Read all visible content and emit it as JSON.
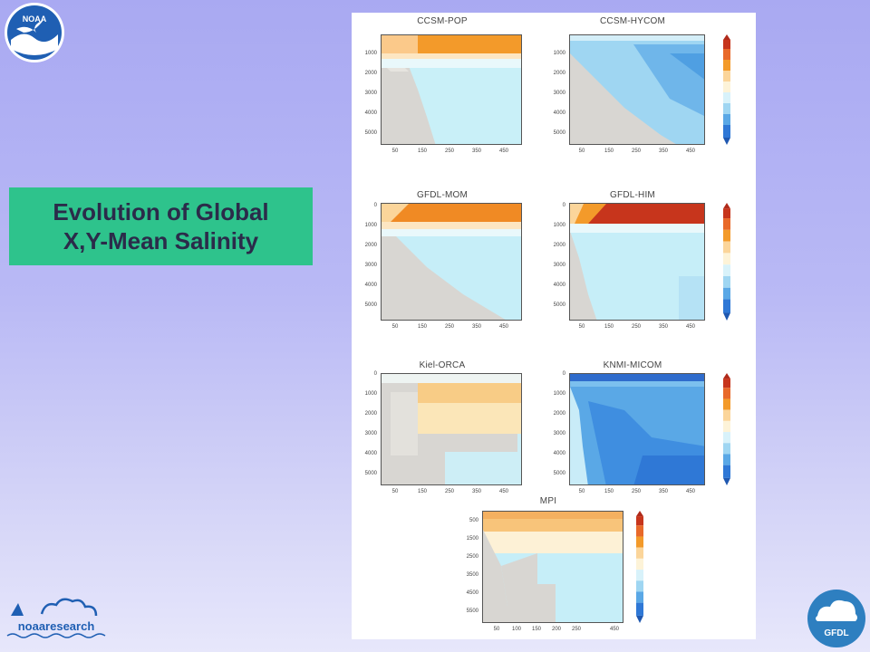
{
  "logos": {
    "noaa": "NOAA",
    "noaa_research": "noaaresearch",
    "gfdl": "GFDL"
  },
  "slide": {
    "title_line1": "Evolution of Global",
    "title_line2": "X,Y-Mean Salinity"
  },
  "figure": {
    "panels": [
      {
        "key": "ccsm_pop",
        "title": "CCSM-POP",
        "yticks": [
          "1000",
          "2000",
          "3000",
          "4000",
          "5000"
        ],
        "xticks": [
          "50",
          "150",
          "250",
          "350",
          "450"
        ],
        "colorbar": false
      },
      {
        "key": "ccsm_hycom",
        "title": "CCSM-HYCOM",
        "yticks": [
          "1000",
          "2000",
          "3000",
          "4000",
          "5000"
        ],
        "xticks": [
          "50",
          "150",
          "250",
          "350",
          "450"
        ],
        "colorbar": true
      },
      {
        "key": "gfdl_mom",
        "title": "GFDL-MOM",
        "yticks": [
          "0",
          "1000",
          "2000",
          "3000",
          "4000",
          "5000"
        ],
        "xticks": [
          "50",
          "150",
          "250",
          "350",
          "450"
        ],
        "colorbar": false
      },
      {
        "key": "gfdl_him",
        "title": "GFDL-HIM",
        "yticks": [
          "0",
          "1000",
          "2000",
          "3000",
          "4000",
          "5000"
        ],
        "xticks": [
          "50",
          "150",
          "250",
          "350",
          "450"
        ],
        "colorbar": true
      },
      {
        "key": "kiel_orca",
        "title": "Kiel-ORCA",
        "yticks": [
          "0",
          "1000",
          "2000",
          "3000",
          "4000",
          "5000"
        ],
        "xticks": [
          "50",
          "150",
          "250",
          "350",
          "450"
        ],
        "colorbar": false
      },
      {
        "key": "knmi_micom",
        "title": "KNMI-MICOM",
        "yticks": [
          "0",
          "1000",
          "2000",
          "3000",
          "4000",
          "5000"
        ],
        "xticks": [
          "50",
          "150",
          "250",
          "350",
          "450"
        ],
        "colorbar": true
      },
      {
        "key": "mpi",
        "title": "MPI",
        "yticks": [
          "500",
          "1500",
          "2500",
          "3500",
          "4500",
          "5500"
        ],
        "xticks": [
          "50",
          "100",
          "150",
          "200",
          "250",
          "450"
        ],
        "colorbar": true
      }
    ],
    "colors": {
      "orange": "#f39a2a",
      "pale_orange": "#fbd59a",
      "red": "#c7351c",
      "light_blue": "#c6eef8",
      "mid_blue": "#5aa8e6",
      "deep_blue": "#2f78d6",
      "gray": "#d8d6d2"
    }
  }
}
